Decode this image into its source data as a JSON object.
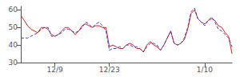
{
  "chart_data": {
    "type": "line",
    "categories": [
      null,
      null,
      null,
      null,
      null,
      null,
      null,
      null,
      null,
      null,
      "12/9",
      null,
      null,
      null,
      null,
      null,
      null,
      null,
      null,
      null,
      null,
      null,
      null,
      null,
      null,
      null,
      "12/23",
      null,
      null,
      null,
      null,
      null,
      null,
      null,
      null,
      null,
      null,
      null,
      null,
      null,
      null,
      null,
      null,
      null,
      null,
      null,
      null,
      null,
      null,
      null,
      null,
      null,
      null,
      null,
      "1/10",
      null,
      null,
      null,
      null,
      null,
      null,
      null,
      null
    ],
    "series": [
      {
        "color": "#dd2222",
        "line_style": "solid",
        "values": [
          57,
          54,
          51,
          49,
          48,
          47,
          50,
          50,
          49,
          46,
          45,
          46,
          48,
          50,
          50,
          48,
          46,
          48,
          51,
          52,
          51,
          50,
          51,
          51,
          50,
          50,
          39,
          40,
          39,
          38,
          38,
          40,
          41,
          40,
          38,
          38,
          36,
          40,
          42,
          40,
          39,
          37,
          40,
          44,
          48,
          41,
          40,
          41,
          43,
          49,
          58,
          60,
          55,
          53,
          52,
          54,
          55,
          54,
          51,
          50,
          47,
          45,
          35
        ]
      },
      {
        "color": "#4444cc",
        "line_style": "dashed",
        "values": [
          44,
          44,
          44,
          45,
          46,
          47,
          49,
          50,
          50,
          45,
          45,
          46,
          47,
          49,
          49,
          48,
          47,
          48,
          50,
          53,
          52,
          50,
          52,
          53,
          51,
          48,
          37,
          38,
          38,
          39,
          38,
          40,
          40,
          39,
          39,
          38,
          36,
          39,
          41,
          41,
          40,
          37,
          40,
          44,
          48,
          41,
          40,
          41,
          44,
          50,
          59,
          61,
          55,
          53,
          51,
          54,
          56,
          53,
          49,
          48,
          46,
          44,
          39
        ]
      }
    ],
    "ylim": [
      30,
      62
    ],
    "yticks": [
      30,
      40,
      50,
      60
    ],
    "grid": false
  }
}
